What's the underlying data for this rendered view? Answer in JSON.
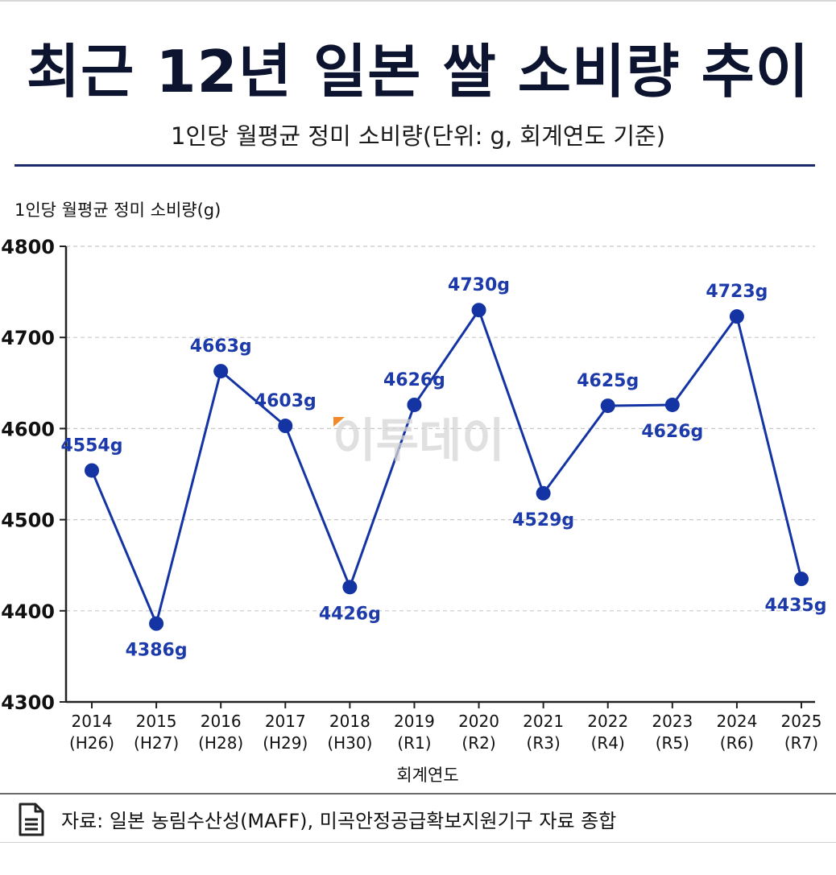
{
  "title": "최근 12년 일본 쌀 소비량 추이",
  "subtitle": "1인당 월평균 정미 소비량(단위: g, 회계연도 기준)",
  "source": "자료: 일본 농림수산성(MAFF), 미곡안정공급확보지원기구 자료 종합",
  "watermark": "이투데이",
  "chart_data": {
    "type": "line",
    "ylabel": "1인당 월평균 정미 소비량(g)",
    "xlabel": "회계연도",
    "ylim": [
      4300,
      4800
    ],
    "yticks": [
      "4300",
      "4400",
      "4500",
      "4600",
      "4700",
      "4800"
    ],
    "grid": true,
    "categories": [
      {
        "year": "2014",
        "era": "(H26)"
      },
      {
        "year": "2015",
        "era": "(H27)"
      },
      {
        "year": "2016",
        "era": "(H28)"
      },
      {
        "year": "2017",
        "era": "(H29)"
      },
      {
        "year": "2018",
        "era": "(H30)"
      },
      {
        "year": "2019",
        "era": "(R1)"
      },
      {
        "year": "2020",
        "era": "(R2)"
      },
      {
        "year": "2021",
        "era": "(R3)"
      },
      {
        "year": "2022",
        "era": "(R4)"
      },
      {
        "year": "2023",
        "era": "(R5)"
      },
      {
        "year": "2024",
        "era": "(R6)"
      },
      {
        "year": "2025",
        "era": "(R7)"
      }
    ],
    "values": [
      4554,
      4386,
      4663,
      4603,
      4426,
      4626,
      4730,
      4529,
      4625,
      4626,
      4723,
      4435
    ],
    "labels": [
      "4554g",
      "4386g",
      "4663g",
      "4603g",
      "4426g",
      "4626g",
      "4730g",
      "4529g",
      "4625g",
      "4626g",
      "4723g",
      "4435g"
    ],
    "label_side": [
      "above",
      "below",
      "above",
      "above",
      "below",
      "above",
      "above",
      "below",
      "above",
      "below",
      "above",
      "below"
    ],
    "colors": {
      "line": "#1434a4",
      "label": "#1c3aa9",
      "grid": "#c8c8c8",
      "axis": "#222222"
    }
  }
}
